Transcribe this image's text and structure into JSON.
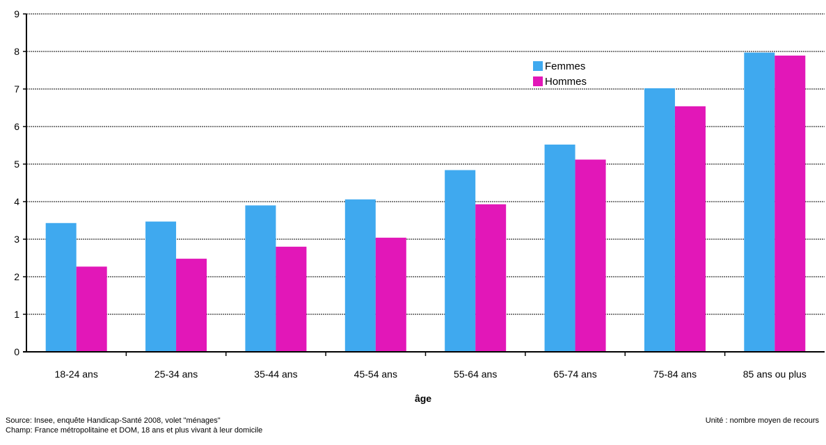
{
  "chart_data": {
    "type": "bar",
    "categories": [
      "18-24 ans",
      "25-34 ans",
      "35-44 ans",
      "45-54 ans",
      "55-64 ans",
      "65-74 ans",
      "75-84 ans",
      "85 ans ou plus"
    ],
    "series": [
      {
        "name": "Femmes",
        "color": "#3FA9EF",
        "values": [
          3.43,
          3.47,
          3.9,
          4.06,
          4.84,
          5.52,
          7.02,
          7.97
        ]
      },
      {
        "name": "Hommes",
        "color": "#E217B8",
        "values": [
          2.27,
          2.48,
          2.8,
          3.04,
          3.93,
          5.12,
          6.54,
          7.89
        ]
      }
    ],
    "xlabel": "âge",
    "ylabel": "",
    "ylim": [
      0,
      9
    ],
    "yticks": [
      0,
      1,
      2,
      3,
      4,
      5,
      6,
      7,
      8,
      9
    ],
    "grid": true,
    "legend_position": "top-right"
  },
  "footer": {
    "source": "Source: Insee, enquête Handicap-Santé 2008, volet \"ménages\"",
    "champ": "Champ: France métropolitaine et DOM, 18 ans et plus vivant à leur domicile",
    "unit": "Unité : nombre moyen de recours"
  }
}
